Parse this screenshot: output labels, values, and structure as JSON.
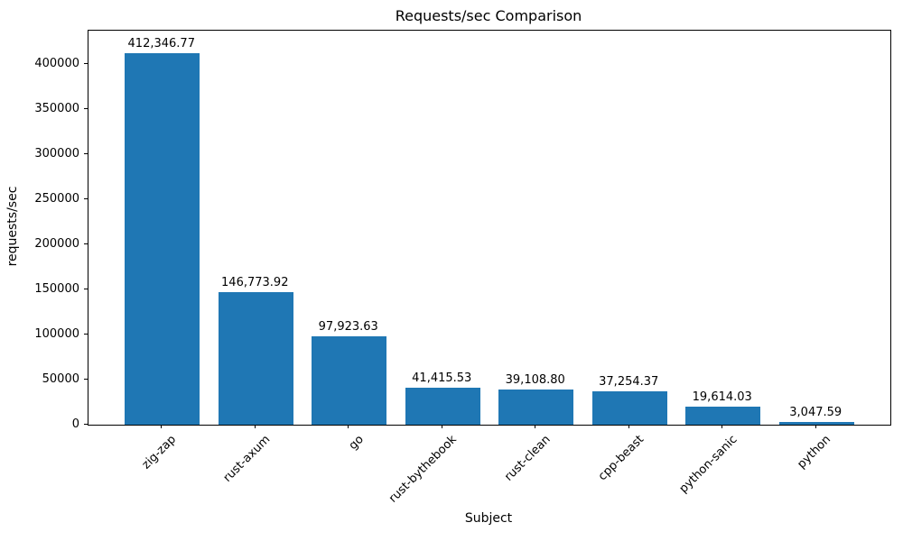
{
  "chart_data": {
    "type": "bar",
    "title": "Requests/sec Comparison",
    "xlabel": "Subject",
    "ylabel": "requests/sec",
    "categories": [
      "zig-zap",
      "rust-axum",
      "go",
      "rust-bythebook",
      "rust-clean",
      "cpp-beast",
      "python-sanic",
      "python"
    ],
    "values": [
      412346.77,
      146773.92,
      97923.63,
      41415.53,
      39108.8,
      37254.37,
      19614.03,
      3047.59
    ],
    "value_labels": [
      "412,346.77",
      "146,773.92",
      "97,923.63",
      "41,415.53",
      "39,108.80",
      "37,254.37",
      "19,614.03",
      "3,047.59"
    ],
    "yticks": [
      0,
      50000,
      100000,
      150000,
      200000,
      250000,
      300000,
      350000,
      400000
    ],
    "ytick_labels": [
      "0",
      "50000",
      "100000",
      "150000",
      "200000",
      "250000",
      "300000",
      "350000",
      "400000"
    ],
    "ylim": [
      0,
      437000
    ],
    "x_tick_rotation_deg": 45,
    "grid": false,
    "legend": null,
    "bar_color": "#1f77b4",
    "text_color": "#000000",
    "background_color": "#ffffff"
  }
}
